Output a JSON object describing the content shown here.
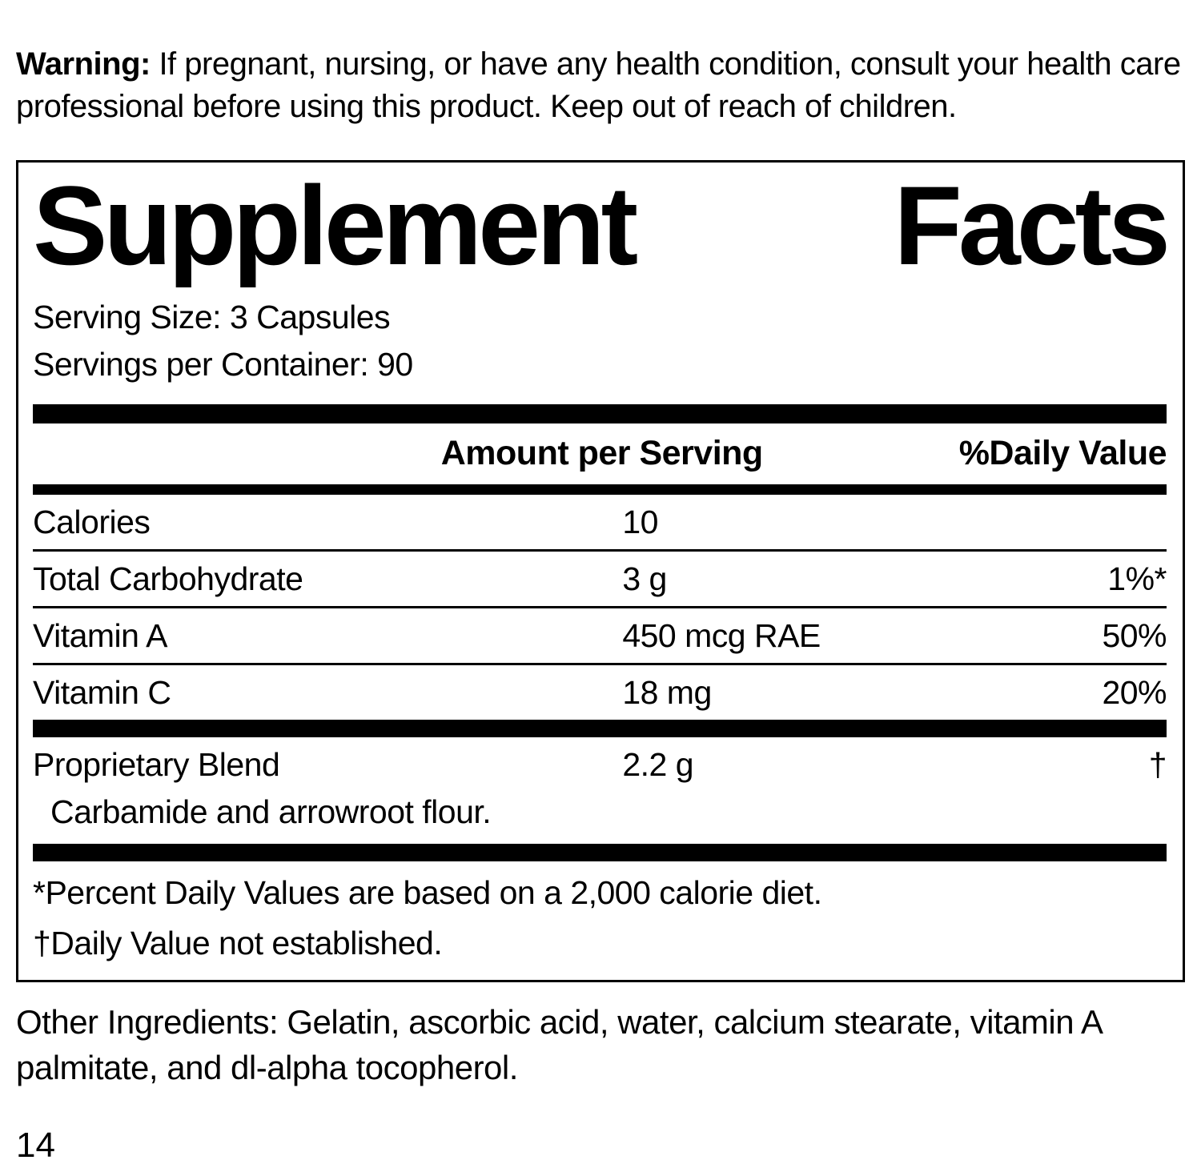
{
  "warning": {
    "label": "Warning:",
    "text": " If pregnant, nursing, or have any health condition, consult your health care professional before using this product. Keep out of reach of children."
  },
  "panel": {
    "title_word1": "Supplement",
    "title_word2": "Facts",
    "serving_size": "Serving Size: 3 Capsules",
    "servings_per_container": "Servings per Container: 90",
    "header": {
      "amount": "Amount per Serving",
      "daily_value": "%Daily Value"
    },
    "rows": [
      {
        "name": "Calories",
        "amount": "10",
        "dv": ""
      },
      {
        "name": "Total Carbohydrate",
        "amount": "3 g",
        "dv": "1%*"
      },
      {
        "name": "Vitamin A",
        "amount": "450 mcg RAE",
        "dv": "50%"
      },
      {
        "name": "Vitamin C",
        "amount": "18 mg",
        "dv": "20%"
      }
    ],
    "blend": {
      "name": "Proprietary Blend",
      "amount": "2.2 g",
      "dv": "†",
      "description": "Carbamide and arrowroot flour."
    },
    "footnotes": [
      "*Percent Daily Values are based on a 2,000 calorie diet.",
      "†Daily Value not established."
    ]
  },
  "other_ingredients": "Other Ingredients: Gelatin, ascorbic acid, water, calcium stearate, vitamin A palmitate, and dl-alpha tocopherol.",
  "page_number": "14",
  "colors": {
    "text": "#000000",
    "background": "#ffffff"
  }
}
